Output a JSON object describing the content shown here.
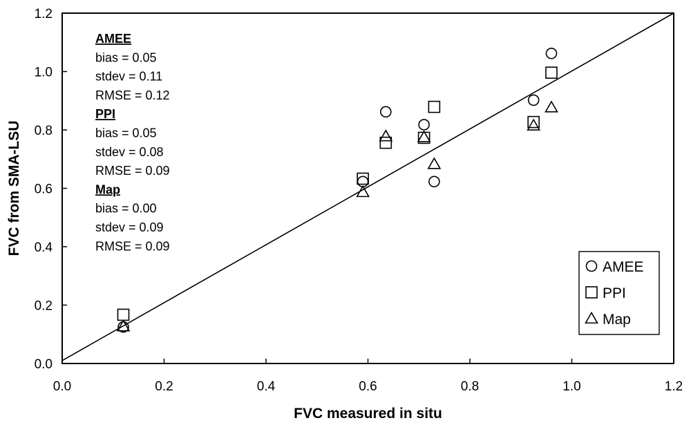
{
  "chart_data": {
    "type": "scatter",
    "title": "",
    "xlabel": "FVC measured in situ",
    "ylabel": "FVC from SMA-LSU",
    "xlim": [
      0.0,
      1.2
    ],
    "ylim": [
      0.0,
      1.2
    ],
    "xticks": [
      "0.0",
      "0.2",
      "0.4",
      "0.6",
      "0.8",
      "1.0",
      "1.2"
    ],
    "yticks": [
      "0.0",
      "0.2",
      "0.4",
      "0.6",
      "0.8",
      "1.0",
      "1.2"
    ],
    "grid": false,
    "reference_line": {
      "x": [
        0.0,
        1.2
      ],
      "y": [
        0.01,
        1.2
      ]
    },
    "legend_position": "bottom-right",
    "series": [
      {
        "name": "AMEE",
        "marker": "circle",
        "x": [
          0.12,
          0.59,
          0.635,
          0.71,
          0.73,
          0.925,
          0.96
        ],
        "y": [
          0.125,
          0.623,
          0.862,
          0.818,
          0.623,
          0.902,
          1.062
        ]
      },
      {
        "name": "PPI",
        "marker": "square",
        "x": [
          0.12,
          0.59,
          0.635,
          0.71,
          0.73,
          0.925,
          0.96
        ],
        "y": [
          0.167,
          0.633,
          0.756,
          0.773,
          0.879,
          0.827,
          0.996
        ]
      },
      {
        "name": "Map",
        "marker": "triangle",
        "x": [
          0.12,
          0.59,
          0.635,
          0.71,
          0.73,
          0.925,
          0.96
        ],
        "y": [
          0.127,
          0.587,
          0.778,
          0.775,
          0.683,
          0.815,
          0.877
        ]
      }
    ],
    "annotations": [
      {
        "group": "AMEE",
        "lines": [
          "bias = 0.05",
          "stdev = 0.11",
          "RMSE = 0.12"
        ]
      },
      {
        "group": "PPI",
        "lines": [
          "bias = 0.05",
          "stdev = 0.08",
          "RMSE = 0.09"
        ]
      },
      {
        "group": "Map",
        "lines": [
          "bias = 0.00",
          "stdev = 0.09",
          "RMSE = 0.09"
        ]
      }
    ]
  }
}
